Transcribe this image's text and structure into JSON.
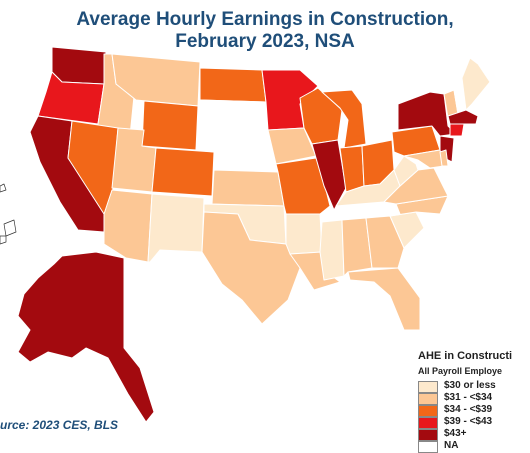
{
  "title_line1": "Average Hourly Earnings in Construction,",
  "title_line2": "February 2023, NSA",
  "legend": {
    "title": "AHE in Constructi",
    "subtitle": "All Payroll Employe",
    "items": [
      {
        "label": "$30 or less",
        "color": "#fde9cd"
      },
      {
        "label": "$31 - <$34",
        "color": "#fcc795"
      },
      {
        "label": "$34 - <$39",
        "color": "#f26718"
      },
      {
        "label": "$39 - <$43",
        "color": "#e8171c"
      },
      {
        "label": "$43+",
        "color": "#a30a0f"
      },
      {
        "label": "NA",
        "color": "#ffffff"
      }
    ]
  },
  "source": "urce: 2023 CES, BLS",
  "state_categories": {
    "WA": "$43+",
    "OR": "$39 - <$43",
    "CA": "$43+",
    "NV": "$34 - <$39",
    "ID": "$31 - <$34",
    "MT": "$31 - <$34",
    "WY": "$34 - <$39",
    "UT": "$31 - <$34",
    "AZ": "$31 - <$34",
    "CO": "$34 - <$39",
    "NM": "$30 or less",
    "ND": "$34 - <$39",
    "SD": "NA",
    "NE": "NA",
    "KS": "$31 - <$34",
    "OK": "$30 or less",
    "TX": "$31 - <$34",
    "MN": "$39 - <$43",
    "IA": "$31 - <$34",
    "MO": "$34 - <$39",
    "AR": "$30 or less",
    "LA": "$31 - <$34",
    "WI": "$34 - <$39",
    "IL": "$43+",
    "MI": "$34 - <$39",
    "IN": "$34 - <$39",
    "OH": "$34 - <$39",
    "KY": "$30 or less",
    "TN": "NA",
    "MS": "$30 or less",
    "AL": "$31 - <$34",
    "GA": "$31 - <$34",
    "FL": "$31 - <$34",
    "SC": "$30 or less",
    "NC": "$31 - <$34",
    "VA": "$31 - <$34",
    "WV": "$30 or less",
    "PA": "$34 - <$39",
    "NY": "$43+",
    "VT": "$31 - <$34",
    "NH": "NA",
    "ME": "$30 or less",
    "MA": "$43+",
    "CT": "$39 - <$43",
    "NJ": "$43+",
    "MD": "$31 - <$34",
    "DE": "$31 - <$34",
    "AK": "$43+",
    "HI": "NA"
  }
}
